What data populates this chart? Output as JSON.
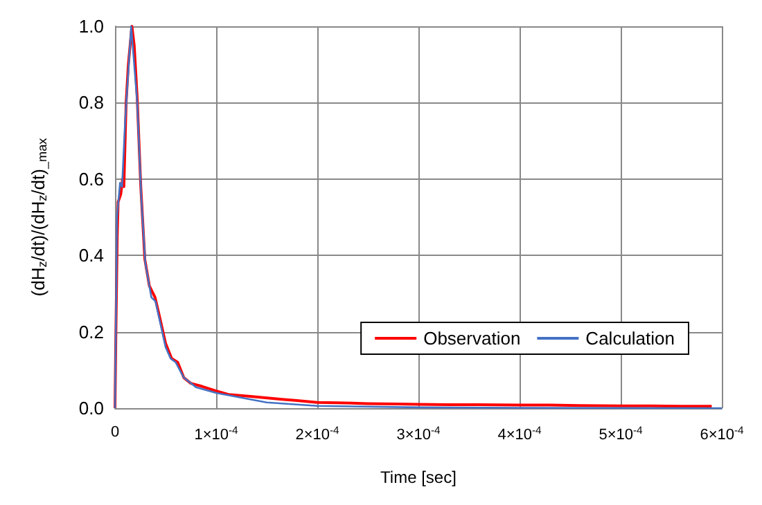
{
  "chart_data": {
    "type": "line",
    "xlabel": "Time [sec]",
    "ylabel": "(dH$_{z}$/dt)/(dH$_{z}$/dt)$_{_max}$",
    "xlim": [
      0,
      0.0006
    ],
    "xticks": [
      0,
      {
        "value": 0.0001,
        "label": "1×10$^{-4}$"
      },
      {
        "value": 0.0002,
        "label": "2×10$^{-4}$"
      },
      {
        "value": 0.0003,
        "label": "3×10$^{-4}$"
      },
      {
        "value": 0.0004,
        "label": "4×10$^{-4}$"
      },
      {
        "value": 0.0005,
        "label": "5×10$^{-4}$"
      },
      {
        "value": 0.0006,
        "label": "6×10$^{-4}$"
      }
    ],
    "ylim": [
      0,
      1
    ],
    "yticks": [
      {
        "value": 0,
        "label": "0.0"
      },
      0.2,
      0.4,
      0.6,
      0.8,
      {
        "value": 1,
        "label": "1.0"
      }
    ],
    "grid": true,
    "legend": "right",
    "marker": "none",
    "line_style": "solid",
    "series": [
      {
        "name": "Observation",
        "color": "#ff0000",
        "x": [
          0,
          9e-07,
          2.2e-06,
          3.1e-06,
          5.7e-06,
          7.5e-06,
          8.8e-06,
          1.1e-05,
          1.32e-05,
          1.67e-05,
          1.9e-05,
          2.2e-05,
          2.55e-05,
          2.95e-05,
          3.4e-05,
          3.96e-05,
          4.4e-05,
          5e-05,
          5.6e-05,
          6.2e-05,
          6.8e-05,
          7.5e-05,
          8.6e-05,
          9.9e-05,
          0.000112,
          0.000134,
          0.000165,
          0.00018,
          0.0002,
          0.00022,
          0.00025,
          0.00028,
          0.0003,
          0.00033,
          0.00036,
          0.0004,
          0.00043,
          0.00046,
          0.0005,
          0.00053,
          0.00056,
          0.00059
        ],
        "values": [
          0,
          0.2,
          0.45,
          0.54,
          0.56,
          0.6,
          0.58,
          0.8,
          0.9,
          1.0,
          0.95,
          0.81,
          0.58,
          0.39,
          0.32,
          0.29,
          0.24,
          0.17,
          0.13,
          0.12,
          0.08,
          0.065,
          0.057,
          0.046,
          0.036,
          0.031,
          0.023,
          0.02,
          0.015,
          0.014,
          0.012,
          0.011,
          0.01,
          0.009,
          0.009,
          0.008,
          0.008,
          0.007,
          0.006,
          0.006,
          0.005,
          0.005
        ]
      },
      {
        "name": "Calculation",
        "color": "#4472c4",
        "x": [
          0,
          2e-06,
          5e-06,
          7e-06,
          1e-05,
          1.6e-05,
          2.2e-05,
          2.6e-05,
          3e-05,
          3.6e-05,
          4e-05,
          4.5e-05,
          5e-05,
          5.5e-05,
          6e-05,
          6.8e-05,
          8e-05,
          0.0001,
          0.00012,
          0.00015,
          0.0002,
          0.0003,
          0.0004,
          0.0006
        ],
        "values": [
          0,
          0.5,
          0.59,
          0.58,
          0.75,
          1.0,
          0.8,
          0.55,
          0.38,
          0.29,
          0.28,
          0.22,
          0.16,
          0.13,
          0.12,
          0.08,
          0.055,
          0.04,
          0.03,
          0.015,
          0.006,
          0.002,
          0.001,
          0
        ]
      }
    ]
  }
}
